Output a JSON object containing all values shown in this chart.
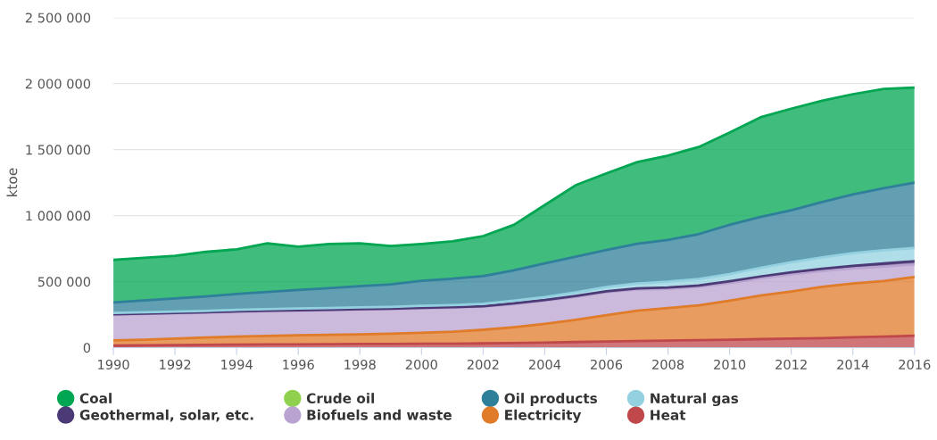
{
  "chart_data": {
    "type": "area",
    "stacked": true,
    "ylabel": "ktoe",
    "x": [
      1990,
      1991,
      1992,
      1993,
      1994,
      1995,
      1996,
      1997,
      1998,
      1999,
      2000,
      2001,
      2002,
      2003,
      2004,
      2005,
      2006,
      2007,
      2008,
      2009,
      2010,
      2011,
      2012,
      2013,
      2014,
      2015,
      2016
    ],
    "series": [
      {
        "name": "Heat",
        "color": "#c0484b",
        "values": [
          15000,
          17000,
          19000,
          21000,
          23000,
          24000,
          25000,
          26000,
          27000,
          28000,
          29000,
          30000,
          32000,
          35000,
          38000,
          42000,
          46000,
          50000,
          53000,
          56000,
          60000,
          64000,
          68000,
          72000,
          78000,
          84000,
          90000
        ]
      },
      {
        "name": "Electricity",
        "color": "#e07b2a",
        "values": [
          40000,
          43000,
          49000,
          55000,
          61000,
          64000,
          68000,
          71000,
          74000,
          78000,
          83000,
          90000,
          103000,
          120000,
          142000,
          168000,
          199000,
          230000,
          247000,
          264000,
          295000,
          331000,
          357000,
          388000,
          407000,
          421000,
          445000
        ]
      },
      {
        "name": "Biofuels and waste",
        "color": "#b9a3d0",
        "values": [
          195000,
          195000,
          192000,
          189000,
          188000,
          188000,
          187000,
          187000,
          187000,
          186000,
          185000,
          182000,
          175000,
          175000,
          175000,
          175000,
          175000,
          160000,
          146000,
          140000,
          135000,
          130000,
          130000,
          120000,
          115000,
          110000,
          95000
        ]
      },
      {
        "name": "Geothermal, solar, etc.",
        "color": "#4b3a75",
        "values": [
          2000,
          2000,
          2000,
          2000,
          2000,
          3000,
          3000,
          3000,
          3000,
          3000,
          4000,
          4000,
          4000,
          5000,
          5000,
          6000,
          7000,
          8000,
          9000,
          10000,
          12000,
          14000,
          16000,
          18000,
          20000,
          22000,
          25000
        ]
      },
      {
        "name": "Natural gas",
        "color": "#94d1e0",
        "values": [
          10000,
          10000,
          11000,
          11000,
          12000,
          12000,
          13000,
          13000,
          14000,
          14000,
          15000,
          16000,
          18000,
          20000,
          23000,
          27000,
          32000,
          38000,
          45000,
          50000,
          55000,
          65000,
          75000,
          85000,
          95000,
          100000,
          100000
        ]
      },
      {
        "name": "Oil products",
        "color": "#2e7f9a",
        "values": [
          80000,
          90000,
          100000,
          110000,
          120000,
          130000,
          140000,
          150000,
          160000,
          170000,
          190000,
          200000,
          210000,
          230000,
          255000,
          270000,
          280000,
          300000,
          316000,
          340000,
          373000,
          385000,
          394000,
          420000,
          445000,
          470000,
          495000
        ]
      },
      {
        "name": "Crude oil",
        "color": "#8fd14f",
        "values": [
          null,
          null,
          null,
          null,
          null,
          null,
          null,
          null,
          null,
          null,
          null,
          null,
          null,
          null,
          null,
          null,
          null,
          null,
          null,
          null,
          null,
          null,
          null,
          null,
          null,
          null,
          null
        ]
      },
      {
        "name": "Coal",
        "color": "#00a651",
        "values": [
          323000,
          323000,
          322000,
          337000,
          339000,
          369000,
          329000,
          335000,
          325000,
          291000,
          279000,
          283000,
          303000,
          345000,
          442000,
          542000,
          581000,
          619000,
          639000,
          660000,
          700000,
          756000,
          770000,
          767000,
          760000,
          753000,
          720000
        ]
      }
    ],
    "xlim": [
      1990,
      2016
    ],
    "xticks": [
      1990,
      1992,
      1994,
      1996,
      1998,
      2000,
      2002,
      2004,
      2006,
      2008,
      2010,
      2012,
      2014,
      2016
    ],
    "ylim": [
      0,
      2500000
    ],
    "yticks": [
      {
        "value": 0,
        "label": "0"
      },
      {
        "value": 500000,
        "label": "500 000"
      },
      {
        "value": 1000000,
        "label": "1 000 000"
      },
      {
        "value": 1500000,
        "label": "1 500 000"
      },
      {
        "value": 2000000,
        "label": "2 000 000"
      },
      {
        "value": 2500000,
        "label": "2 500 000"
      }
    ],
    "grid": "y",
    "legend": "bottom"
  }
}
